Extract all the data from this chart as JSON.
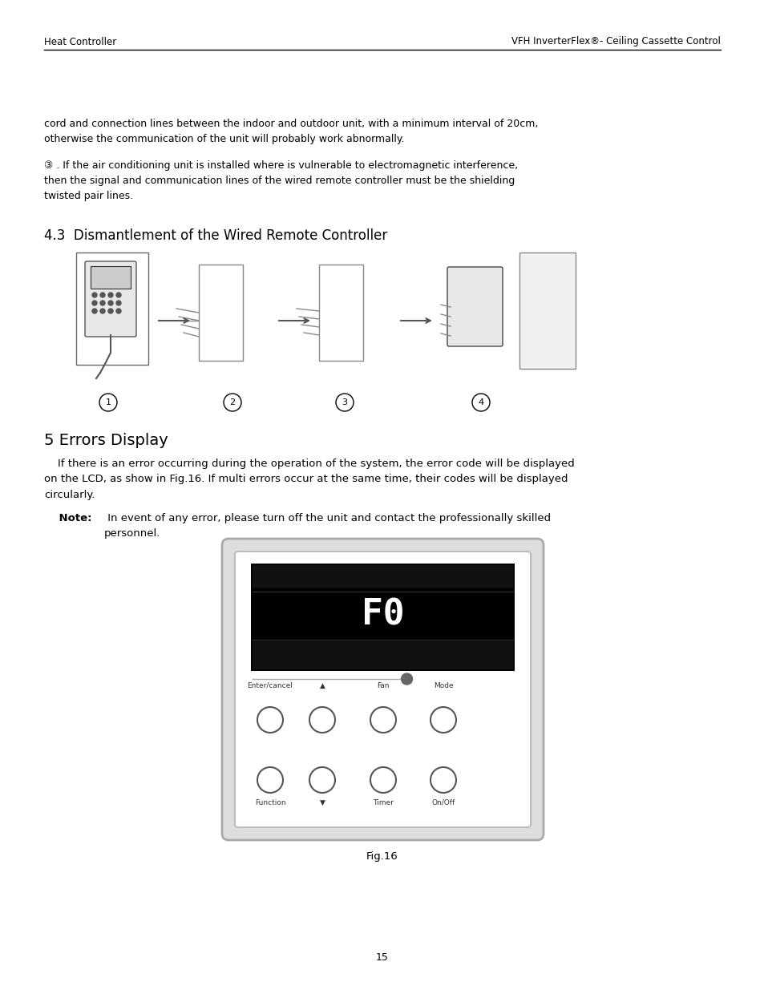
{
  "header_left": "Heat Controller",
  "header_right": "VFH InverterFlex®- Ceiling Cassette Control",
  "page_number": "15",
  "paragraph1": "cord and connection lines between the indoor and outdoor unit, with a minimum interval of 20cm,\notherwise the communication of the unit will probably work abnormally.",
  "paragraph2": "③ . If the air conditioning unit is installed where is vulnerable to electromagnetic interference,\nthen the signal and communication lines of the wired remote controller must be the shielding\ntwisted pair lines.",
  "section_title": "4.3  Dismantlement of the Wired Remote Controller",
  "section5_title": "5 Errors Display",
  "para3": "    If there is an error occurring during the operation of the system, the error code will be displayed\non the LCD, as show in Fig.16. If multi errors occur at the same time, their codes will be displayed\ncircularly.",
  "para4_bold": "Note:",
  "para4_rest": " In event of any error, please turn off the unit and contact the professionally skilled\npersonnel.",
  "fig_caption": "Fig.16",
  "button_labels_top": [
    "Enter/cancel",
    "▲",
    "Fan",
    "Mode"
  ],
  "button_labels_bot": [
    "Function",
    "▼",
    "Timer",
    "On/Off"
  ],
  "display_text": "F0",
  "bg_color": "#ffffff",
  "text_color": "#000000",
  "header_line_color": "#000000"
}
